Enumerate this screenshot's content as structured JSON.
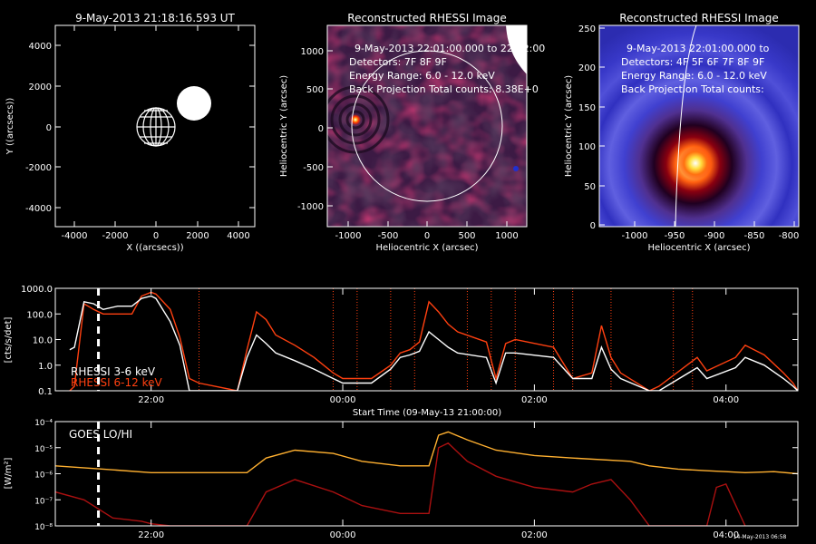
{
  "panel1": {
    "title": "9-May-2013 21:18:16.593 UT",
    "xlabel": "X ((arcsecs))",
    "ylabel": "Y ((arcsecs))",
    "xticks": [
      "-4000",
      "-2000",
      "0",
      "2000",
      "4000"
    ],
    "yticks": [
      "4000",
      "2000",
      "0",
      "-2000",
      "-4000"
    ]
  },
  "panel2": {
    "title": "Reconstructed RHESSI Image",
    "ann1": "9-May-2013 22:01:00.000 to 22:02:00",
    "ann2": "Detectors: 7F 8F 9F",
    "ann3": "Energy Range: 6.0 - 12.0 keV",
    "ann4": "Back Projection     Total counts: 8.38E+0",
    "xlabel": "Heliocentric X (arcsec)",
    "ylabel": "Heliocentric Y (arcsec)",
    "xticks": [
      "-1000",
      "-500",
      "0",
      "500",
      "1000"
    ],
    "yticks": [
      "1000",
      "500",
      "0",
      "-500",
      "-1000"
    ]
  },
  "panel3": {
    "title": "Reconstructed RHESSI Image",
    "ann1": "9-May-2013 22:01:00.000 to",
    "ann2": "Detectors: 4F 5F 6F 7F 8F 9F",
    "ann3": "Energy Range: 6.0 - 12.0 keV",
    "ann4": "Back Projection     Total counts:",
    "xlabel": "Heliocentric X (arcsec)",
    "ylabel": "Heliocentric Y (arcsec)",
    "xticks": [
      "-1000",
      "-950",
      "-900",
      "-850",
      "-800"
    ],
    "yticks": [
      "250",
      "200",
      "150",
      "100",
      "50",
      "0"
    ]
  },
  "panel4": {
    "ylabel": "[cts/s/det]",
    "xlabel": "Start Time (09-May-13 21:00:00)",
    "yticks": [
      "1000.0",
      "100.0",
      "10.0",
      "1.0",
      "0.1"
    ],
    "xticks": [
      "22:00",
      "00:00",
      "02:00",
      "04:00"
    ],
    "legend1": "RHESSI  3-6 keV",
    "legend2": "RHESSI  6-12 keV"
  },
  "panel5": {
    "ylabel": "[W/m²]",
    "legend": "GOES LO/HI",
    "xticks": [
      "22:00",
      "00:00",
      "02:00",
      "04:00"
    ],
    "yticks": [
      "10⁻⁴",
      "10⁻⁵",
      "10⁻⁶",
      "10⁻⁷",
      "10⁻⁸"
    ],
    "footer": "14-May-2013 06:58"
  },
  "colors": {
    "rhessi_low": "#ffffff",
    "rhessi_high": "#ff4010",
    "goes_lo": "#ffb030",
    "goes_hi": "#aa1010",
    "marker": "#ffffff",
    "event_line": "#ff4010"
  },
  "chart_data": [
    {
      "type": "image",
      "title": "9-May-2013 21:18:16.593 UT",
      "xlim": [
        -4800,
        4800
      ],
      "ylim": [
        -5000,
        5000
      ]
    },
    {
      "type": "heatmap",
      "title": "Reconstructed RHESSI Image",
      "xlim": [
        -1250,
        1250
      ],
      "ylim": [
        -1250,
        1250
      ],
      "source": {
        "x": -930,
        "y": 130
      }
    },
    {
      "type": "heatmap",
      "title": "Reconstructed RHESSI Image",
      "xlim": [
        -1050,
        -800
      ],
      "ylim": [
        0,
        250
      ],
      "source": {
        "x": -925,
        "y": 80
      }
    },
    {
      "type": "line",
      "xlabel": "Start Time (09-May-13 21:00:00)",
      "ylabel": "[cts/s/det]",
      "y_scale": "log",
      "ylim": [
        0.1,
        1000
      ],
      "x_hours_range": [
        21.0,
        28.75
      ],
      "series": [
        {
          "name": "RHESSI  3-6 keV",
          "x": [
            21.15,
            21.2,
            21.3,
            21.4,
            21.5,
            21.65,
            21.8,
            21.9,
            22.0,
            22.05,
            22.2,
            22.3,
            22.4,
            22.5,
            22.9,
            23.0,
            23.1,
            23.2,
            23.3,
            23.5,
            23.7,
            23.9,
            24.0,
            24.3,
            24.5,
            24.6,
            24.7,
            24.8,
            24.9,
            25.0,
            25.1,
            25.2,
            25.5,
            25.6,
            25.7,
            25.8,
            26.2,
            26.4,
            26.6,
            26.7,
            26.8,
            26.9,
            27.2,
            27.3,
            27.7,
            27.8,
            28.1,
            28.2,
            28.4,
            28.6,
            28.7,
            28.75
          ],
          "y": [
            4,
            5,
            300,
            250,
            150,
            200,
            200,
            400,
            500,
            400,
            50,
            6,
            0.1,
            0.1,
            0.1,
            2,
            15,
            7,
            3,
            1.5,
            0.7,
            0.3,
            0.2,
            0.2,
            0.7,
            2,
            2.5,
            3.5,
            20,
            10,
            5,
            3,
            2,
            0.2,
            3,
            3,
            2,
            0.3,
            0.3,
            5,
            0.7,
            0.3,
            0.1,
            0.1,
            0.8,
            0.3,
            0.8,
            2,
            1,
            0.3,
            0.15,
            0.1
          ]
        },
        {
          "name": "RHESSI  6-12 keV",
          "x": [
            21.15,
            21.2,
            21.3,
            21.4,
            21.5,
            21.65,
            21.8,
            21.9,
            22.0,
            22.05,
            22.2,
            22.3,
            22.4,
            22.5,
            22.9,
            23.0,
            23.1,
            23.2,
            23.3,
            23.5,
            23.7,
            23.9,
            24.0,
            24.3,
            24.5,
            24.6,
            24.7,
            24.8,
            24.9,
            25.0,
            25.1,
            25.2,
            25.5,
            25.6,
            25.7,
            25.8,
            26.2,
            26.4,
            26.6,
            26.7,
            26.8,
            26.9,
            27.2,
            27.3,
            27.7,
            27.8,
            28.1,
            28.2,
            28.4,
            28.6,
            28.7,
            28.75
          ],
          "y": [
            0.1,
            0.15,
            250,
            150,
            100,
            100,
            100,
            500,
            700,
            600,
            150,
            12,
            0.3,
            0.2,
            0.1,
            4,
            120,
            60,
            15,
            6,
            2,
            0.5,
            0.3,
            0.3,
            1,
            3,
            4,
            8,
            300,
            120,
            40,
            20,
            8,
            0.3,
            7,
            10,
            5,
            0.3,
            0.5,
            35,
            2,
            0.5,
            0.1,
            0.15,
            2,
            0.6,
            2,
            6,
            2.5,
            0.5,
            0.2,
            0.1
          ]
        }
      ],
      "markers": {
        "dashed_white_hours": [
          21.45
        ],
        "dotted_red_hours": [
          22.5,
          23.9,
          24.15,
          24.5,
          24.75,
          25.3,
          25.55,
          25.8,
          26.2,
          26.4,
          26.8,
          27.45,
          27.65
        ]
      }
    },
    {
      "type": "line",
      "ylabel": "[W/m²]",
      "y_scale": "log",
      "ylim": [
        1e-08,
        0.0001
      ],
      "x_hours_range": [
        21.0,
        28.75
      ],
      "series": [
        {
          "name": "GOES LO/HI (lo)",
          "x": [
            21.0,
            21.5,
            22.0,
            22.5,
            23.0,
            23.2,
            23.5,
            23.9,
            24.2,
            24.6,
            24.9,
            25.0,
            25.1,
            25.3,
            25.6,
            26.0,
            26.4,
            27.0,
            27.2,
            27.5,
            27.8,
            28.0,
            28.2,
            28.5,
            28.75
          ],
          "y": [
            2e-06,
            1.5e-06,
            1.1e-06,
            1.1e-06,
            1.1e-06,
            4e-06,
            8e-06,
            6e-06,
            3e-06,
            2e-06,
            2e-06,
            3e-05,
            4e-05,
            2e-05,
            8e-06,
            5e-06,
            4e-06,
            3e-06,
            2e-06,
            1.5e-06,
            1.3e-06,
            1.2e-06,
            1.1e-06,
            1.2e-06,
            1e-06
          ]
        },
        {
          "name": "GOES LO/HI (hi)",
          "x": [
            21.0,
            21.3,
            21.6,
            21.9,
            22.0,
            22.2,
            22.5,
            23.0,
            23.2,
            23.5,
            23.9,
            24.2,
            24.6,
            24.9,
            25.0,
            25.1,
            25.3,
            25.6,
            26.0,
            26.4,
            26.6,
            26.8,
            27.0,
            27.2,
            27.5,
            27.8,
            27.9,
            28.0,
            28.2
          ],
          "y": [
            2e-07,
            1e-07,
            2e-08,
            1.5e-08,
            1.2e-08,
            1e-08,
            1e-08,
            1e-08,
            2e-07,
            6e-07,
            2e-07,
            6e-08,
            3e-08,
            3e-08,
            1e-05,
            1.5e-05,
            3e-06,
            8e-07,
            3e-07,
            2e-07,
            4e-07,
            6e-07,
            1e-07,
            1e-08,
            1e-08,
            1e-08,
            3e-07,
            4e-07,
            1e-08
          ]
        }
      ],
      "markers": {
        "dashed_white_hours": [
          21.45
        ]
      }
    }
  ]
}
